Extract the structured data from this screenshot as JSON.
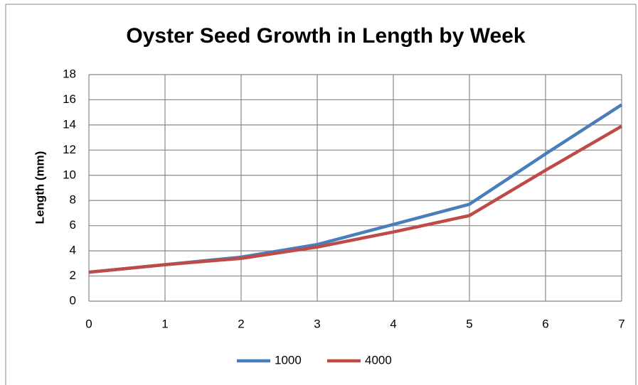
{
  "chart_data": {
    "type": "line",
    "title": "Oyster Seed Growth in Length by Week",
    "y_label": "Length (mm)",
    "x": [
      0,
      1,
      2,
      3,
      4,
      5,
      6,
      7
    ],
    "series": [
      {
        "name": "1000",
        "color": "#4a7ebb",
        "values": [
          2.3,
          2.9,
          3.5,
          4.5,
          6.1,
          7.7,
          11.7,
          15.6
        ]
      },
      {
        "name": "4000",
        "color": "#be4b48",
        "values": [
          2.3,
          2.9,
          3.4,
          4.3,
          5.5,
          6.8,
          10.4,
          13.9
        ]
      }
    ],
    "xlim": [
      0,
      7
    ],
    "xticks": [
      0,
      1,
      2,
      3,
      4,
      5,
      6,
      7
    ],
    "ylim": [
      0,
      18
    ],
    "yticks": [
      0,
      2,
      4,
      6,
      8,
      10,
      12,
      14,
      16,
      18
    ],
    "grid": true,
    "legend": "bottom"
  }
}
